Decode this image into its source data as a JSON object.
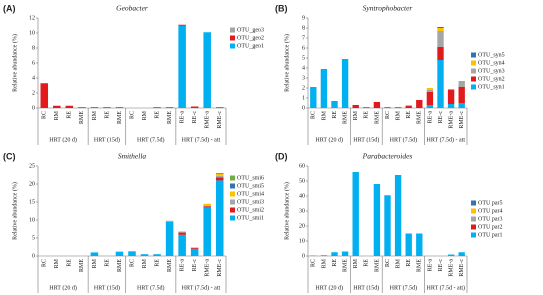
{
  "chart_data": [
    {
      "type": "bar",
      "stacked": true,
      "panel": "(A)",
      "title": "Geobacter",
      "ylabel": "Relative abundance (%)",
      "groups": [
        {
          "label": "HRT (20 d)",
          "categories": [
            "RC",
            "RM",
            "RE",
            "RME"
          ]
        },
        {
          "label": "HRT (15d)",
          "categories": [
            "RM",
            "RE",
            "RME"
          ]
        },
        {
          "label": "HRT (7.5d)",
          "categories": [
            "RC",
            "RM",
            "RE",
            "RME"
          ]
        },
        {
          "label": "HRT (7.5d) - att",
          "categories": [
            "RE-a",
            "RE-c",
            "RME-a",
            "RME-c"
          ]
        }
      ],
      "series": [
        {
          "name": "OTU_geo1",
          "color": "#00b0f0",
          "values": [
            0,
            0,
            0,
            0,
            0,
            0,
            0,
            0,
            0,
            0,
            0,
            11,
            0,
            10.1,
            0
          ]
        },
        {
          "name": "OTU_geo2",
          "color": "#e31a1c",
          "values": [
            3.3,
            0.3,
            0.3,
            0.1,
            0.1,
            0.1,
            0.1,
            0,
            0,
            0.1,
            0.1,
            0.1,
            0.2,
            0,
            0.1
          ]
        },
        {
          "name": "OTU_geo3",
          "color": "#a6a6a6",
          "values": [
            0,
            0,
            0,
            0,
            0,
            0,
            0,
            0,
            0,
            0,
            0,
            0,
            0,
            0,
            0
          ]
        }
      ],
      "ylim": [
        0,
        12
      ],
      "yticks": [
        0,
        2,
        4,
        6,
        8,
        10,
        12
      ]
    },
    {
      "type": "bar",
      "stacked": true,
      "panel": "(B)",
      "title": "Syntrophobacter",
      "ylabel": "Relative abundance (%)",
      "groups": [
        {
          "label": "HRT (20 d)",
          "categories": [
            "RC",
            "RM",
            "RE",
            "RME"
          ]
        },
        {
          "label": "HRT (15d)",
          "categories": [
            "RM",
            "RE",
            "RME"
          ]
        },
        {
          "label": "HRT (7.5d)",
          "categories": [
            "RC",
            "RM",
            "RE",
            "RME"
          ]
        },
        {
          "label": "HRT (7.5d) - att",
          "categories": [
            "RE-a",
            "RE-c",
            "RME-a",
            "RME-c"
          ]
        }
      ],
      "series": [
        {
          "name": "OTU_syn1",
          "color": "#00b0f0",
          "values": [
            2.1,
            3.9,
            0.7,
            4.9,
            0,
            0.1,
            0,
            0.1,
            0.1,
            0,
            0,
            0.3,
            4.8,
            0.4,
            0.5
          ]
        },
        {
          "name": "OTU_syn2",
          "color": "#e31a1c",
          "values": [
            0,
            0,
            0,
            0,
            0.3,
            0,
            0.6,
            0,
            0,
            0.2,
            0.8,
            1.3,
            1.3,
            1.4,
            1.6
          ]
        },
        {
          "name": "OTU_syn3",
          "color": "#a6a6a6",
          "values": [
            0,
            0,
            0,
            0,
            0,
            0,
            0,
            0,
            0,
            0,
            0,
            0.2,
            1.6,
            0.1,
            0.6
          ]
        },
        {
          "name": "OTU_syn4",
          "color": "#ffc000",
          "values": [
            0,
            0,
            0,
            0,
            0,
            0,
            0,
            0,
            0,
            0.1,
            0,
            0.2,
            0.3,
            0,
            0
          ]
        },
        {
          "name": "OTU_syn5",
          "color": "#2e75b6",
          "values": [
            0,
            0,
            0,
            0,
            0,
            0,
            0,
            0,
            0,
            0,
            0,
            0,
            0.1,
            0,
            0
          ]
        }
      ],
      "ylim": [
        0,
        9
      ],
      "yticks": [
        0,
        1,
        2,
        3,
        4,
        5,
        6,
        7,
        8,
        9
      ]
    },
    {
      "type": "bar",
      "stacked": true,
      "panel": "(C)",
      "title": "Smithella",
      "ylabel": "Relative abundance (%)",
      "groups": [
        {
          "label": "HRT (20 d)",
          "categories": [
            "RC",
            "RM",
            "RE",
            "RME"
          ]
        },
        {
          "label": "HRT (15d)",
          "categories": [
            "RM",
            "RE",
            "RME"
          ]
        },
        {
          "label": "HRT (7.5d)",
          "categories": [
            "RC",
            "RM",
            "RE",
            "RME"
          ]
        },
        {
          "label": "HRT (7.5d) - att",
          "categories": [
            "RE-a",
            "RE-c",
            "RME-a",
            "RME-c"
          ]
        }
      ],
      "series": [
        {
          "name": "OTU_smi1",
          "color": "#00b0f0",
          "values": [
            0,
            0,
            0,
            0,
            1,
            0,
            1.2,
            1.3,
            0.5,
            0.5,
            9.5,
            5.9,
            2,
            13.5,
            21
          ]
        },
        {
          "name": "OTU_smi2",
          "color": "#e31a1c",
          "values": [
            0,
            0,
            0,
            0,
            0,
            0,
            0,
            0,
            0,
            0,
            0,
            0.6,
            0.3,
            0.3,
            0.8
          ]
        },
        {
          "name": "OTU_smi3",
          "color": "#a6a6a6",
          "values": [
            0,
            0,
            0,
            0,
            0,
            0,
            0,
            0,
            0,
            0,
            0.3,
            0.3,
            0,
            0.2,
            0.5
          ]
        },
        {
          "name": "OTU_smi4",
          "color": "#ffc000",
          "values": [
            0,
            0,
            0,
            0,
            0,
            0,
            0,
            0,
            0,
            0,
            0,
            0,
            0,
            0.5,
            0.5
          ]
        },
        {
          "name": "OTU_smi5",
          "color": "#2e75b6",
          "values": [
            0,
            0,
            0,
            0,
            0,
            0,
            0,
            0,
            0,
            0,
            0,
            0,
            0,
            0,
            0.2
          ]
        },
        {
          "name": "OTU_smi6",
          "color": "#70ad47",
          "values": [
            0,
            0,
            0,
            0,
            0,
            0,
            0,
            0,
            0,
            0,
            0,
            0,
            0,
            0,
            0
          ]
        }
      ],
      "ylim": [
        0,
        25
      ],
      "yticks": [
        0,
        5,
        10,
        15,
        20,
        25
      ]
    },
    {
      "type": "bar",
      "stacked": true,
      "panel": "(D)",
      "title": "Parabacteroides",
      "ylabel": "Relative abundance (%)",
      "groups": [
        {
          "label": "HRT (20 d)",
          "categories": [
            "RC",
            "RM",
            "RE",
            "RME"
          ]
        },
        {
          "label": "HRT (15d)",
          "categories": [
            "RM",
            "RE",
            "RME"
          ]
        },
        {
          "label": "HRT (7.5d)",
          "categories": [
            "RC",
            "RM",
            "RE",
            "RME"
          ]
        },
        {
          "label": "HRT (7.5d - att)",
          "categories": [
            "RE-a",
            "RE-c",
            "RME-a",
            "RME-c"
          ]
        }
      ],
      "series": [
        {
          "name": "OTU par1",
          "color": "#00b0f0",
          "values": [
            0.3,
            0.5,
            2.5,
            3,
            56,
            0,
            48,
            40.5,
            54,
            15,
            15,
            0,
            0,
            1,
            2.5
          ]
        },
        {
          "name": "OTU par2",
          "color": "#e31a1c",
          "values": [
            0,
            0,
            0,
            0,
            0,
            0,
            0,
            0,
            0,
            0,
            0,
            0,
            0,
            0,
            0
          ]
        },
        {
          "name": "OTU par3",
          "color": "#a6a6a6",
          "values": [
            0,
            0,
            0,
            0,
            0,
            0,
            0,
            0,
            0,
            0,
            0,
            0,
            0,
            0,
            0
          ]
        },
        {
          "name": "OTU par4",
          "color": "#ffc000",
          "values": [
            0,
            0,
            0,
            0,
            0,
            0,
            0,
            0,
            0,
            0,
            0,
            0,
            0,
            0,
            0
          ]
        },
        {
          "name": "OTU par5",
          "color": "#2e75b6",
          "values": [
            0,
            0,
            0,
            0,
            0,
            0,
            0,
            0,
            0,
            0,
            0,
            0,
            0,
            0,
            0
          ]
        }
      ],
      "ylim": [
        0,
        60
      ],
      "yticks": [
        0,
        10,
        20,
        30,
        40,
        50,
        60
      ]
    }
  ]
}
